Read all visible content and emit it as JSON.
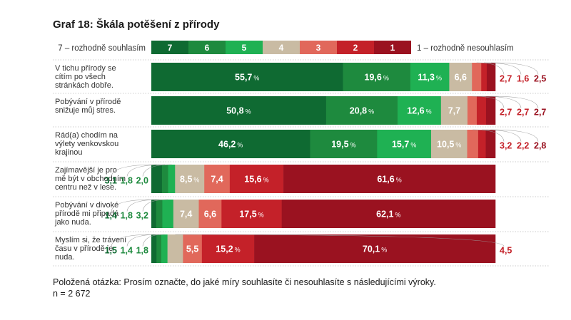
{
  "chart_data": {
    "type": "bar",
    "orientation": "horizontal",
    "stacked": true,
    "title": "Graf 18: Škála potěšení z přírody",
    "legend": {
      "left_label": "7 – rozhodně souhlasím",
      "right_label": "1 – rozhodně nesouhlasím",
      "entries": [
        {
          "name": "7",
          "color": "#0f6a32"
        },
        {
          "name": "6",
          "color": "#1e8a3e"
        },
        {
          "name": "5",
          "color": "#1fb153"
        },
        {
          "name": "4",
          "color": "#c9bba3"
        },
        {
          "name": "3",
          "color": "#e1685b"
        },
        {
          "name": "2",
          "color": "#c42129"
        },
        {
          "name": "1",
          "color": "#9a1220"
        }
      ]
    },
    "categories": [
      "V tichu přírody se cítím po všech stránkách dobře.",
      "Pobývání v přírodě snižuje můj stres.",
      "Rád(a) chodím na výlety venkovskou krajinou",
      "Zajímavější je pro mě být v obchodním centru než v lese.",
      "Pobývání v divoké přírodě mi připadá jako nuda.",
      "Myslím si, že trávení času v přírodě je nuda."
    ],
    "category_lines": [
      [
        "V tichu přírody se",
        "cítím po všech",
        "stránkách dobře."
      ],
      [
        "Pobývání v přírodě",
        "snižuje můj stres."
      ],
      [
        "Rád(a) chodím na",
        "výlety venkovskou",
        "krajinou"
      ],
      [
        "Zajímavější je pro",
        "mě být v obchodním",
        "centru než v lese."
      ],
      [
        "Pobývání v divoké",
        "přírodě mi připadá",
        "jako nuda."
      ],
      [
        "Myslím si, že trávení",
        "času v přírodě je",
        "nuda."
      ]
    ],
    "series": [
      {
        "name": "7",
        "values": [
          55.7,
          50.8,
          46.2,
          3.1,
          1.4,
          1.5
        ]
      },
      {
        "name": "6",
        "values": [
          19.6,
          20.8,
          19.5,
          1.8,
          1.8,
          1.4
        ]
      },
      {
        "name": "5",
        "values": [
          11.3,
          12.6,
          15.7,
          2.0,
          3.2,
          1.8
        ]
      },
      {
        "name": "4",
        "values": [
          6.6,
          7.7,
          10.5,
          8.5,
          7.4,
          4.5
        ]
      },
      {
        "name": "3",
        "values": [
          2.7,
          2.7,
          3.2,
          7.4,
          6.6,
          5.5
        ]
      },
      {
        "name": "2",
        "values": [
          1.6,
          2.7,
          2.2,
          15.6,
          17.5,
          15.2
        ]
      },
      {
        "name": "1",
        "values": [
          2.5,
          2.7,
          2.8,
          61.6,
          62.1,
          70.1
        ]
      }
    ],
    "value_labels": [
      [
        "55,7",
        "19,6",
        "11,3",
        "6,6",
        "2,7",
        "1,6",
        "2,5"
      ],
      [
        "50,8",
        "20,8",
        "12,6",
        "7,7",
        "2,7",
        "2,7",
        "2,7"
      ],
      [
        "46,2",
        "19,5",
        "15,7",
        "10,5",
        "3,2",
        "2,2",
        "2,8"
      ],
      [
        "3,1",
        "1,8",
        "2,0",
        "8,5",
        "7,4",
        "15,6",
        "61,6"
      ],
      [
        "1,4",
        "1,8",
        "3,2",
        "7,4",
        "6,6",
        "17,5",
        "62,1"
      ],
      [
        "1,5",
        "1,4",
        "1,8",
        "4,5",
        "5,5",
        "15,2",
        "70,1"
      ]
    ],
    "percent_sign": "%",
    "xlim": [
      0,
      100
    ],
    "legend_position": "top",
    "grid": false
  },
  "footer": {
    "question": "Položená otázka: Prosím označte, do jaké míry souhlasíte či nesouhlasíte s následujícími výroky.",
    "n": "n = 2 672"
  }
}
